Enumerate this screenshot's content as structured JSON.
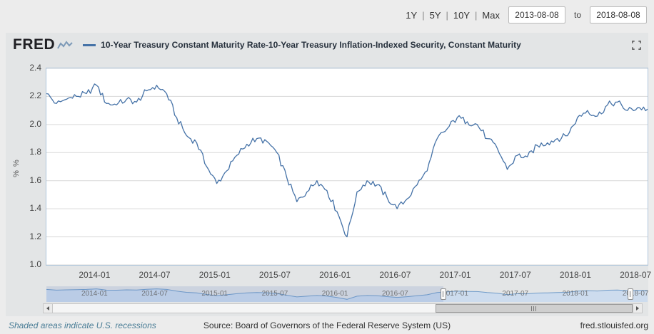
{
  "toolbar": {
    "ranges": [
      "1Y",
      "5Y",
      "10Y",
      "Max"
    ],
    "separator": "|",
    "date_from": "2013-08-08",
    "to_label": "to",
    "date_to": "2018-08-08"
  },
  "header": {
    "logo": "FRED",
    "title": "10-Year Treasury Constant Maturity Rate-10-Year Treasury Inflation-Indexed Security, Constant Maturity"
  },
  "footer": {
    "recession_note": "Shaded areas indicate U.S. recessions",
    "source": "Source: Board of Governors of the Federal Reserve System (US)",
    "site": "fred.stlouisfed.org"
  },
  "colors": {
    "line": "#4572a7",
    "nav_fill": "#cddcee",
    "nav_line": "#6f9bc9",
    "recession_note_text": "#4a7d96",
    "grid": "#d9d9d9",
    "plot_border": "#afc6dc"
  },
  "icons": {
    "logo_icon": "sparkline-icon",
    "expand": "fullscreen-icon",
    "scroll_left": "left-arrow-icon",
    "scroll_right": "right-arrow-icon"
  },
  "chart_data": {
    "type": "line",
    "title": "10-Year Treasury Constant Maturity Rate-10-Year Treasury Inflation-Indexed Security, Constant Maturity",
    "xlabel": "",
    "ylabel": "% %",
    "ylim": [
      1.0,
      2.4
    ],
    "yticks": [
      2.4,
      2.2,
      2.0,
      1.8,
      1.6,
      1.4,
      1.2,
      1.0
    ],
    "grid": "horizontal",
    "legend_position": "top",
    "x_start": 2013.6,
    "x_end": 2018.6,
    "x_step": 0.0833333,
    "cadence": "monthly",
    "start_month": "2013-08",
    "end_month": "2018-08",
    "jitter": 0.024,
    "xticks": [
      {
        "pos": 2014.0,
        "label": "2014-01"
      },
      {
        "pos": 2014.5,
        "label": "2014-07"
      },
      {
        "pos": 2015.0,
        "label": "2015-01"
      },
      {
        "pos": 2015.5,
        "label": "2015-07"
      },
      {
        "pos": 2016.0,
        "label": "2016-01"
      },
      {
        "pos": 2016.5,
        "label": "2016-07"
      },
      {
        "pos": 2017.0,
        "label": "2017-01"
      },
      {
        "pos": 2017.5,
        "label": "2017-07"
      },
      {
        "pos": 2018.0,
        "label": "2018-01"
      },
      {
        "pos": 2018.5,
        "label": "2018-07"
      }
    ],
    "series": [
      {
        "name": "10-Year Treasury Constant Maturity Rate-10-Year Treasury Inflation-Indexed Security, Constant Maturity",
        "color": "#4572a7",
        "values": [
          2.22,
          2.15,
          2.18,
          2.2,
          2.22,
          2.28,
          2.15,
          2.14,
          2.18,
          2.16,
          2.24,
          2.28,
          2.22,
          2.05,
          1.92,
          1.87,
          1.7,
          1.58,
          1.67,
          1.78,
          1.86,
          1.9,
          1.88,
          1.8,
          1.62,
          1.45,
          1.52,
          1.6,
          1.53,
          1.38,
          1.2,
          1.52,
          1.6,
          1.57,
          1.48,
          1.4,
          1.47,
          1.57,
          1.67,
          1.9,
          1.97,
          2.05,
          2.02,
          2.0,
          1.9,
          1.83,
          1.68,
          1.78,
          1.77,
          1.85,
          1.87,
          1.9,
          1.92,
          2.05,
          2.1,
          2.06,
          2.14,
          2.16,
          2.1,
          2.12,
          2.11
        ]
      }
    ]
  }
}
